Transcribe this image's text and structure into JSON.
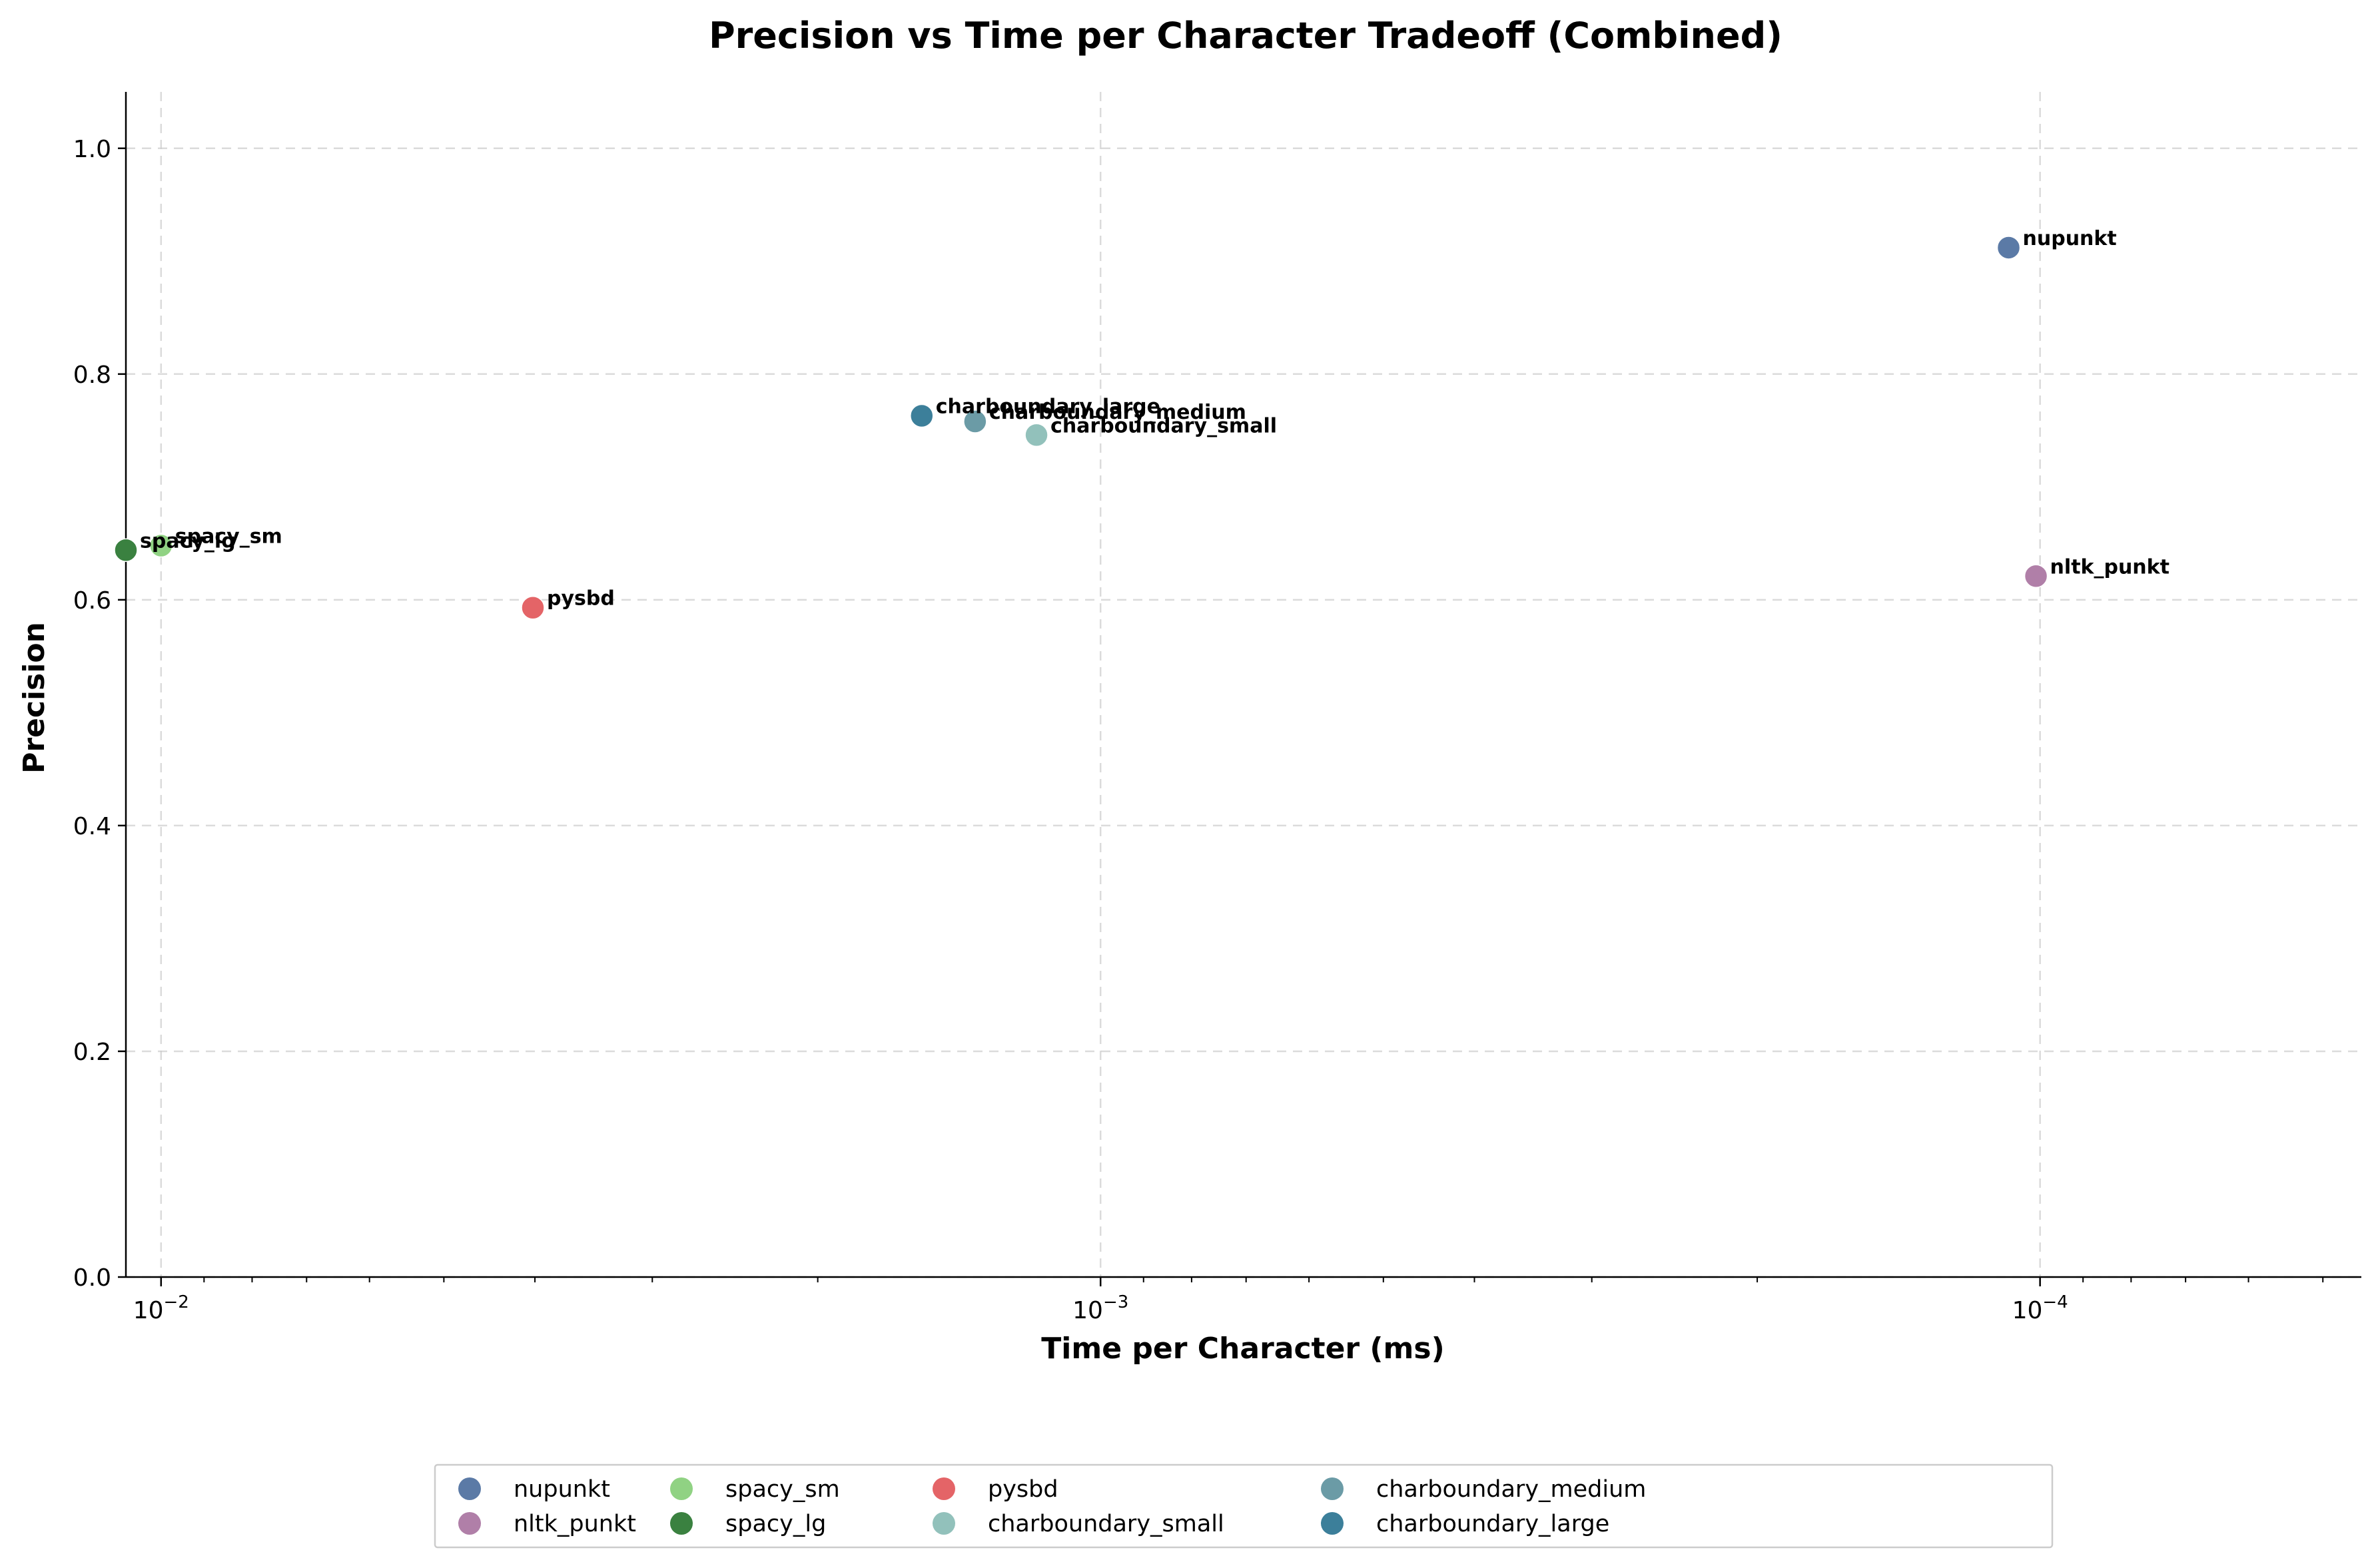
{
  "chart_data": {
    "type": "scatter",
    "title": "Precision vs Time per Character Tradeoff (Combined)",
    "xlabel": "Time per Character (ms)",
    "ylabel": "Precision",
    "x_scale": "log",
    "x_inverted": true,
    "xlim": [
      0.0109,
      4.55e-05
    ],
    "ylim": [
      0.0,
      1.05
    ],
    "x_major_ticks": [
      {
        "value": 0.01,
        "base": "10",
        "exp": "−2"
      },
      {
        "value": 0.001,
        "base": "10",
        "exp": "−3"
      },
      {
        "value": 0.0001,
        "base": "10",
        "exp": "−4"
      }
    ],
    "y_ticks": [
      {
        "value": 0.0,
        "label": "0.0"
      },
      {
        "value": 0.2,
        "label": "0.2"
      },
      {
        "value": 0.4,
        "label": "0.4"
      },
      {
        "value": 0.6,
        "label": "0.6"
      },
      {
        "value": 0.8,
        "label": "0.8"
      },
      {
        "value": 1.0,
        "label": "1.0"
      }
    ],
    "grid": true,
    "legend_position": "bottom-center",
    "series": [
      {
        "name": "nupunkt",
        "x": 0.000108,
        "y": 0.912,
        "color": "#5b7aa6"
      },
      {
        "name": "nltk_punkt",
        "x": 0.000101,
        "y": 0.621,
        "color": "#b07fa8"
      },
      {
        "name": "spacy_sm",
        "x": 0.01,
        "y": 0.648,
        "color": "#90d283"
      },
      {
        "name": "spacy_lg",
        "x": 0.0109,
        "y": 0.644,
        "color": "#3a8140"
      },
      {
        "name": "pysbd",
        "x": 0.00402,
        "y": 0.593,
        "color": "#e46467"
      },
      {
        "name": "charboundary_small",
        "x": 0.00117,
        "y": 0.746,
        "color": "#92c1bb"
      },
      {
        "name": "charboundary_medium",
        "x": 0.00136,
        "y": 0.758,
        "color": "#6b9ba6"
      },
      {
        "name": "charboundary_large",
        "x": 0.00155,
        "y": 0.763,
        "color": "#3c7f9a"
      }
    ]
  }
}
